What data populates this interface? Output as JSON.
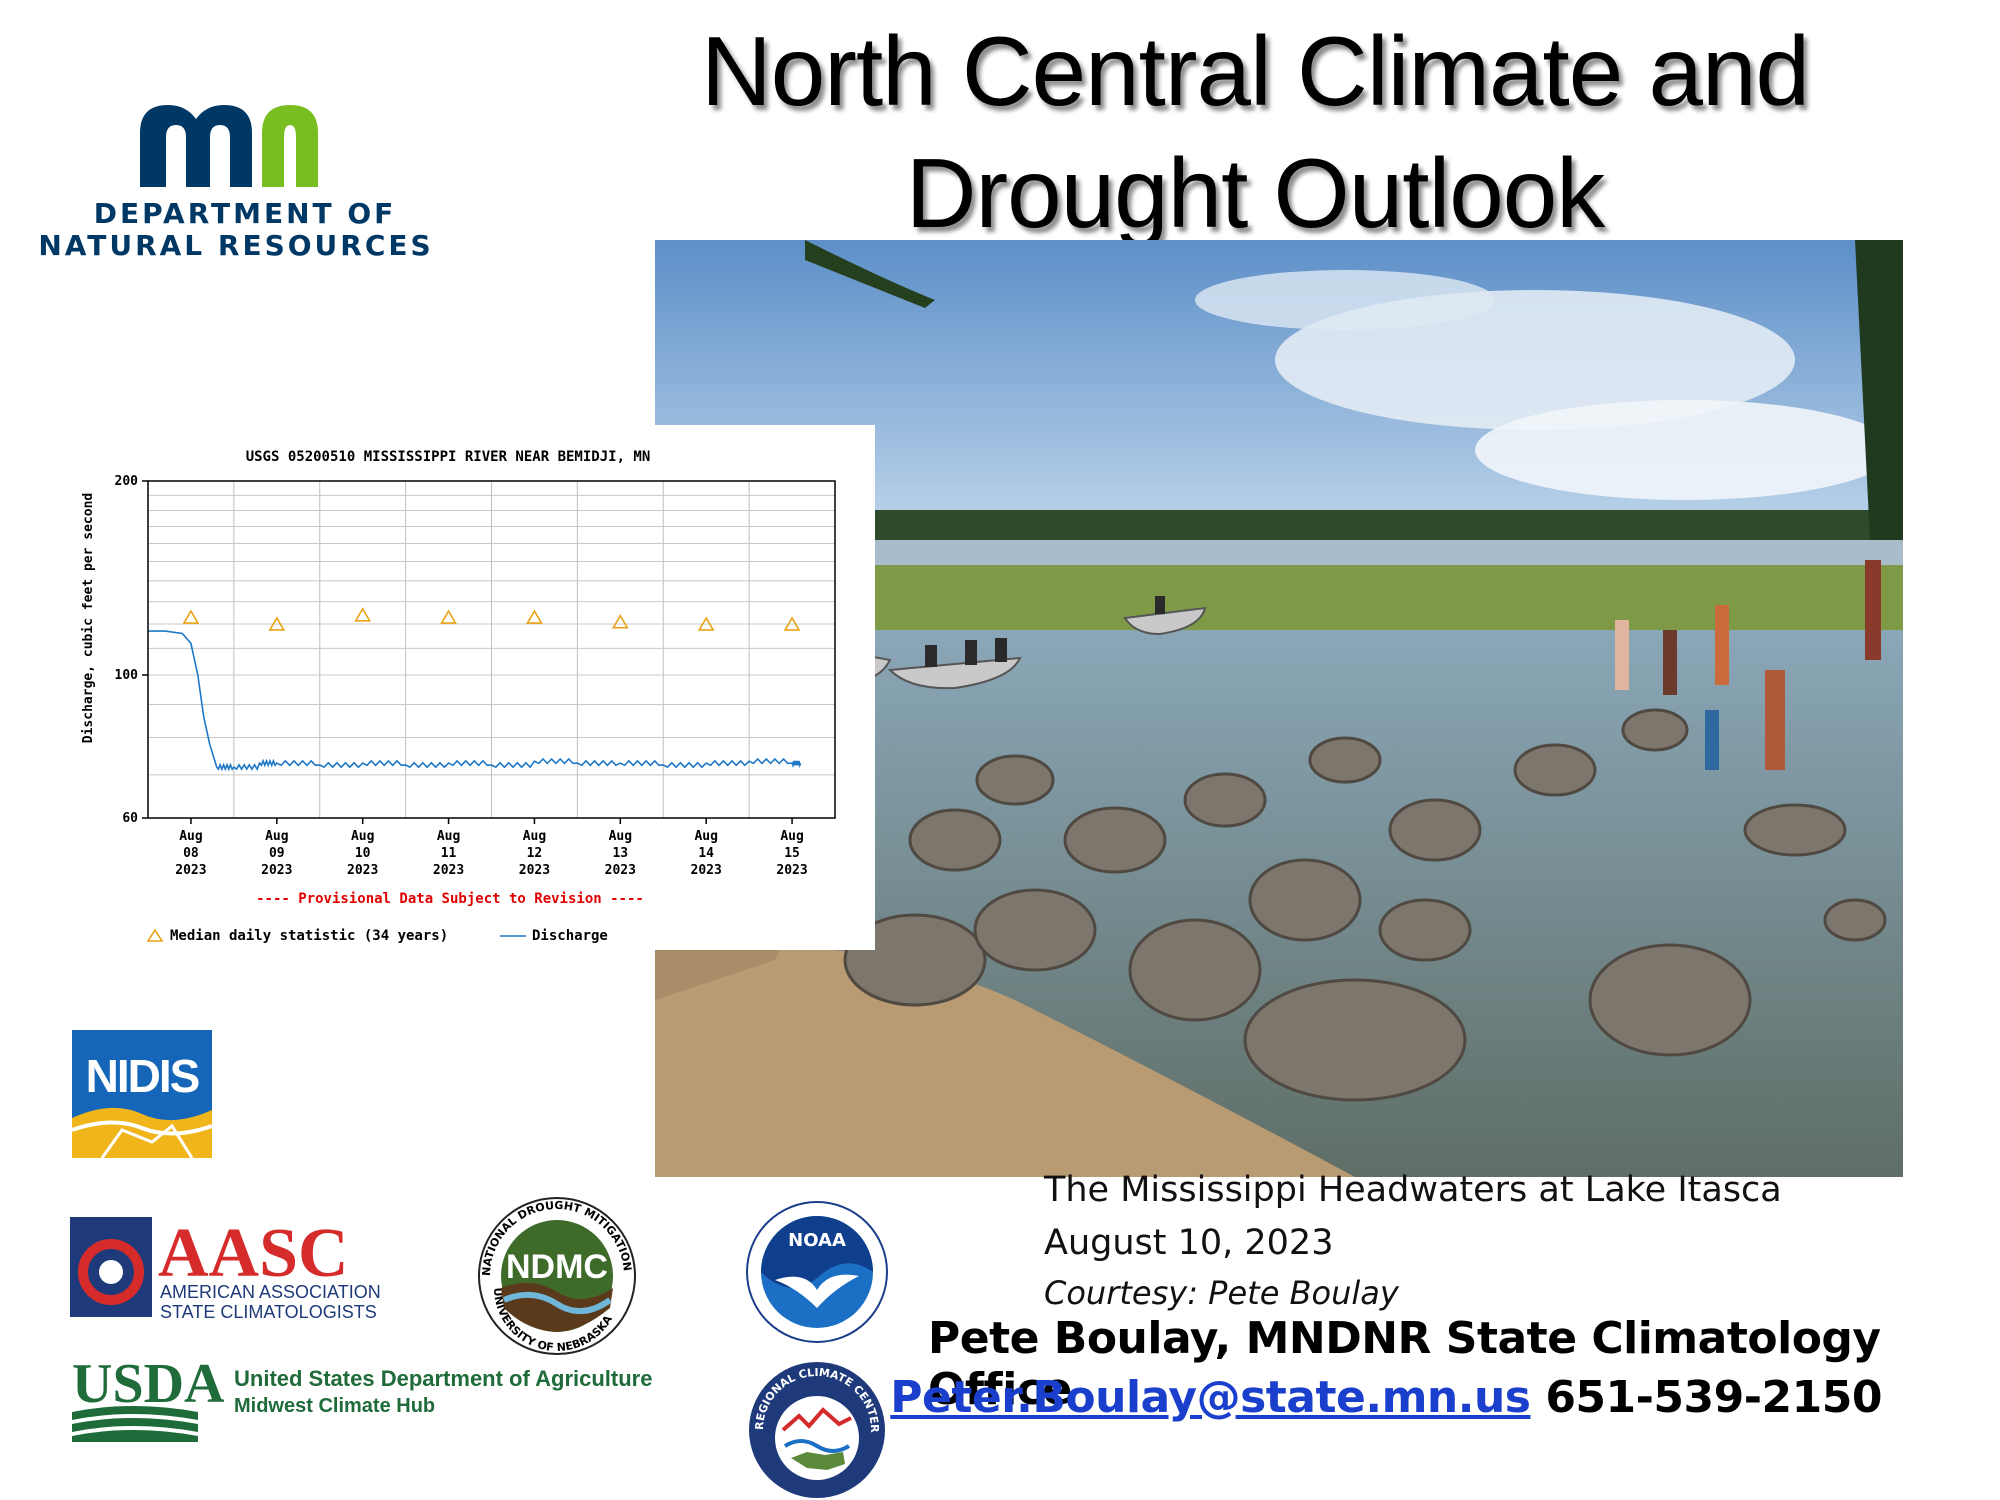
{
  "slide": {
    "title_line1": "North Central Climate and",
    "title_line2": "Drought Outlook",
    "caption_line1": "The Mississippi Headwaters at Lake Itasca",
    "caption_line2": "August 10, 2023",
    "caption_line3": "Courtesy: Pete Boulay",
    "author": "Pete Boulay, MNDNR State Climatology Office",
    "email": "Peter.Boulay@state.mn.us",
    "phone": "651-539-2150"
  },
  "logos": {
    "dnr_line1": "DEPARTMENT OF",
    "dnr_line2": "NATURAL RESOURCES",
    "nidis": "NIDIS",
    "aasc": "AASC",
    "aasc_line1": "AMERICAN ASSOCIATION OF",
    "aasc_line2": "STATE CLIMATOLOGISTS",
    "ndmc": "NDMC",
    "ndmc_ring_top": "NATIONAL DROUGHT MITIGATION CENTER",
    "ndmc_ring_bottom": "UNIVERSITY OF NEBRASKA",
    "noaa": "NOAA",
    "usda": "USDA",
    "usda_line1": "United States Department of Agriculture",
    "usda_line2": "Midwest Climate Hub",
    "rcc_ring": "REGIONAL CLIMATE CENTERS"
  },
  "colors": {
    "mn_blue": "#003865",
    "mn_green": "#78BE21",
    "usgs_orange": "#e8a317",
    "usgs_blue": "#1f77c8",
    "provisional_red": "#e00000",
    "link_blue": "#1a3fcc"
  },
  "chart_data": {
    "type": "line",
    "title": "USGS 05200510 MISSISSIPPI RIVER NEAR BEMIDJI, MN",
    "ylabel": "Discharge, cubic feet per second",
    "yscale": "log",
    "ylim": [
      60,
      200
    ],
    "yticks": [
      60,
      100,
      200
    ],
    "grid": true,
    "x_tick_labels": [
      [
        "Aug",
        "08",
        "2023"
      ],
      [
        "Aug",
        "09",
        "2023"
      ],
      [
        "Aug",
        "10",
        "2023"
      ],
      [
        "Aug",
        "11",
        "2023"
      ],
      [
        "Aug",
        "12",
        "2023"
      ],
      [
        "Aug",
        "13",
        "2023"
      ],
      [
        "Aug",
        "14",
        "2023"
      ],
      [
        "Aug",
        "15",
        "2023"
      ]
    ],
    "note": "---- Provisional Data Subject to Revision ----",
    "legend_placement": "bottom",
    "series": [
      {
        "name": "Median daily statistic (34 years)",
        "marker": "triangle",
        "x": [
          0,
          1,
          2,
          3,
          4,
          5,
          6,
          7
        ],
        "values": [
          123,
          120,
          124,
          123,
          123,
          121,
          120,
          120
        ]
      },
      {
        "name": "Discharge",
        "marker": "line",
        "x": [
          -0.5,
          -0.3,
          -0.1,
          0.0,
          0.08,
          0.15,
          0.22,
          0.3,
          0.5,
          0.8,
          1.0,
          1.5,
          2.0,
          2.5,
          3.0,
          3.5,
          4.0,
          4.5,
          5.0,
          5.5,
          6.0,
          6.5,
          7.0,
          7.1
        ],
        "values": [
          117,
          117,
          116,
          112,
          100,
          86,
          78,
          72,
          72,
          73,
          73,
          72.5,
          73,
          72.5,
          73,
          72.5,
          73.5,
          73,
          73,
          72.5,
          73,
          73.5,
          73,
          73
        ]
      }
    ]
  }
}
